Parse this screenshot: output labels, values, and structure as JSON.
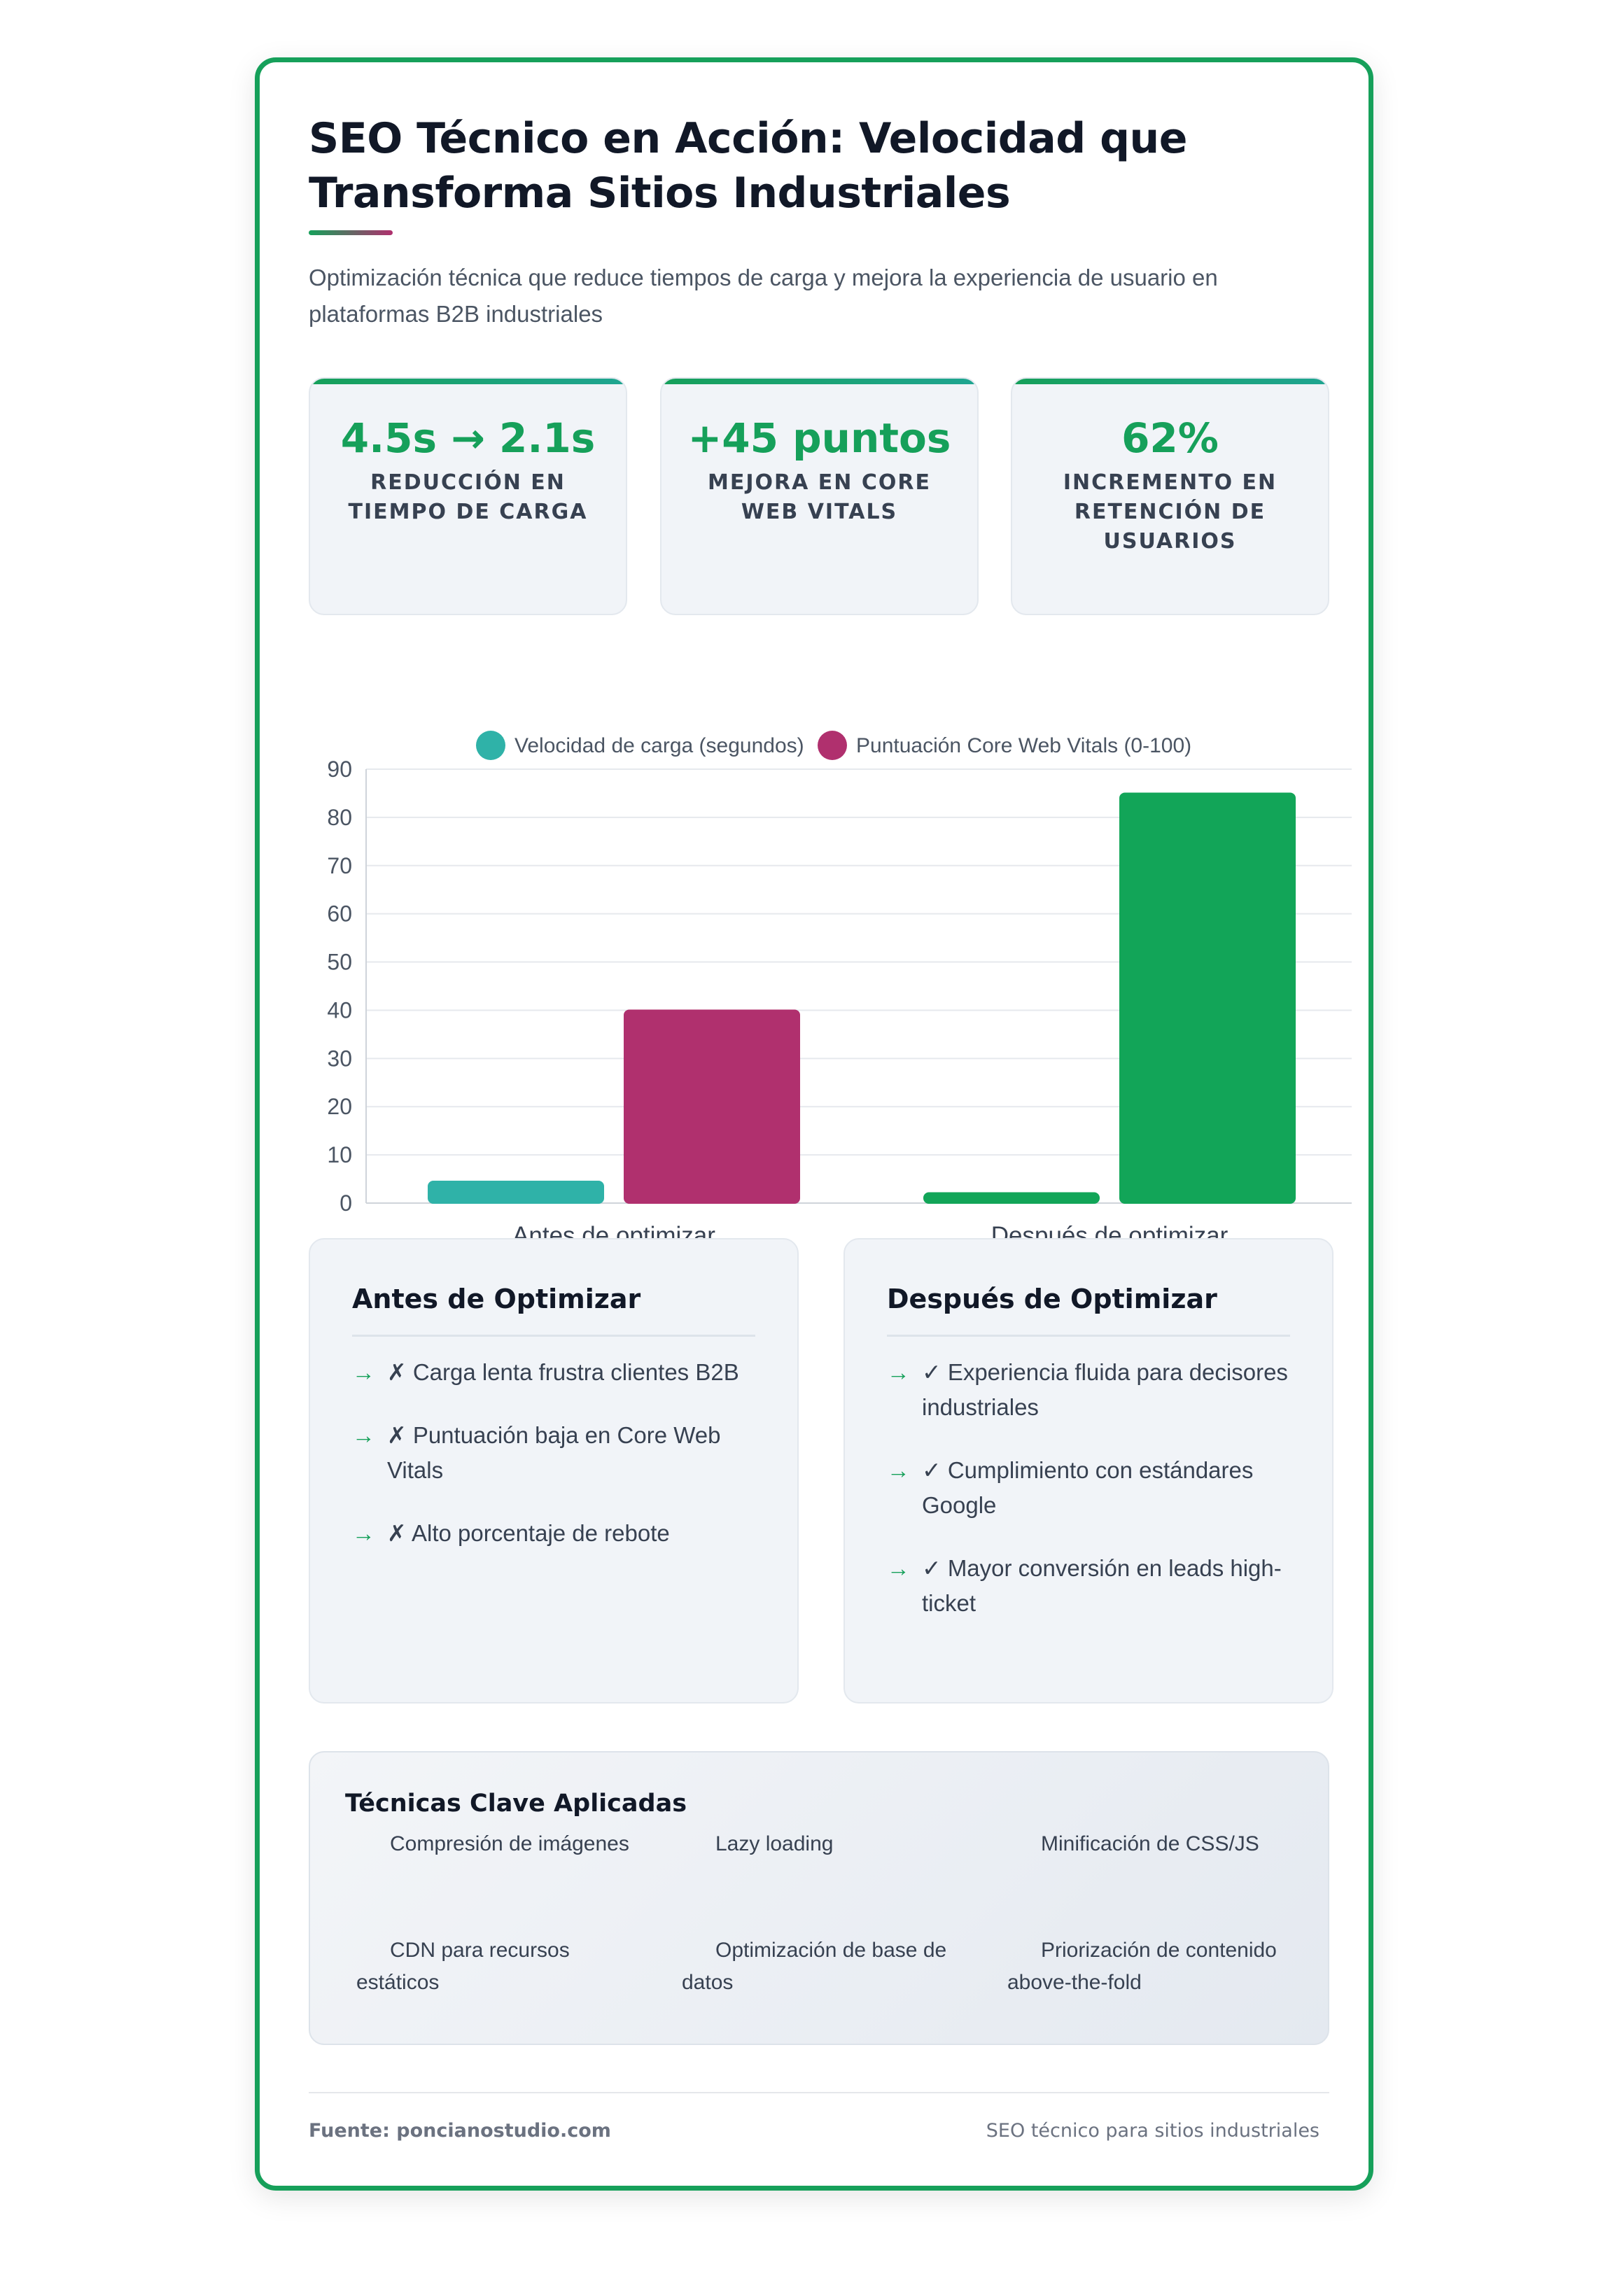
{
  "header": {
    "title": "SEO Técnico en Acción: Velocidad que Transforma Sitios Industriales",
    "subtitle": "Optimización técnica que reduce tiempos de carga y mejora la experiencia de usuario en plataformas B2B industriales"
  },
  "stats": [
    {
      "value": "4.5s → 2.1s",
      "label": "Reducción en tiempo de carga"
    },
    {
      "value": "+45 puntos",
      "label": "Mejora en Core Web Vitals"
    },
    {
      "value": "62%",
      "label": "Incremento en retención de usuarios"
    }
  ],
  "colors": {
    "accent_green": "#16a05a",
    "teal": "#2fb2a8",
    "magenta": "#b0306e",
    "bar_green": "#12a558"
  },
  "chart_data": {
    "type": "bar",
    "categories": [
      "Antes de optimizar",
      "Después de optimizar"
    ],
    "series": [
      {
        "name": "Velocidad de carga (segundos)",
        "values": [
          4.5,
          2.1
        ],
        "colors": [
          "#2fb2a8",
          "#12a558"
        ]
      },
      {
        "name": "Puntuación Core Web Vitals (0-100)",
        "values": [
          40,
          85
        ],
        "colors": [
          "#b0306e",
          "#12a558"
        ]
      }
    ],
    "legend_colors": [
      "#2fb2a8",
      "#b0306e"
    ],
    "ylim": [
      0,
      90
    ],
    "yticks": [
      0,
      10,
      20,
      30,
      40,
      50,
      60,
      70,
      80,
      90
    ],
    "grid": true,
    "legend_position": "top-center"
  },
  "before": {
    "title": "Antes de Optimizar",
    "arrow": "→",
    "items": [
      "✗ Carga lenta frustra clientes B2B",
      "✗ Puntuación baja en Core Web Vitals",
      "✗ Alto porcentaje de rebote"
    ]
  },
  "after": {
    "title": "Después de Optimizar",
    "arrow": "→",
    "items": [
      "✓ Experiencia fluida para decisores industriales",
      "✓ Cumplimiento con estándares Google",
      "✓ Mayor conversión en leads high-ticket"
    ]
  },
  "techniques": {
    "title": "Técnicas Clave Aplicadas",
    "items": [
      "Compresión de imágenes",
      "Lazy loading",
      "Minificación de CSS/JS",
      "CDN para recursos estáticos",
      "Optimización de base de datos",
      "Priorización de contenido above-the-fold"
    ]
  },
  "footer": {
    "source": "Fuente: poncianostudio.com",
    "tagline": "SEO técnico para sitios industriales"
  }
}
